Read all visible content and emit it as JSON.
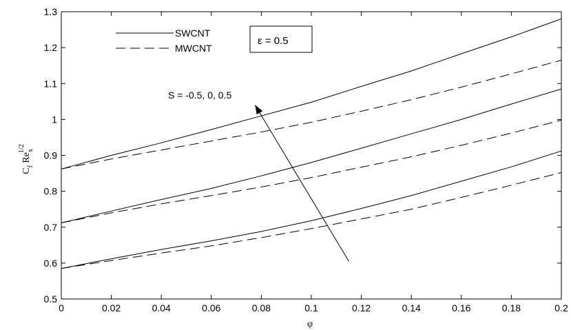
{
  "chart_data": {
    "type": "line",
    "xlabel": "φ",
    "ylabel_main": "C",
    "ylabel_sub1": "f",
    "ylabel_mid": " Re",
    "ylabel_sub2": "x",
    "ylabel_sup": "1/2",
    "xlim": [
      0,
      0.2
    ],
    "ylim": [
      0.5,
      1.3
    ],
    "x_ticks": [
      0,
      0.02,
      0.04,
      0.06,
      0.08,
      0.1,
      0.12,
      0.14,
      0.16,
      0.18,
      0.2
    ],
    "x_tick_labels": [
      "0",
      "0.02",
      "0.04",
      "0.06",
      "0.08",
      "0.1",
      "0.12",
      "0.14",
      "0.16",
      "0.18",
      "0.2"
    ],
    "y_ticks": [
      0.5,
      0.6,
      0.7,
      0.8,
      0.9,
      1.0,
      1.1,
      1.2,
      1.3
    ],
    "y_tick_labels": [
      "0.5",
      "0.6",
      "0.7",
      "0.8",
      "0.9",
      "1",
      "1.1",
      "1.2",
      "1.3"
    ],
    "grid": false,
    "legend": {
      "placement": "top-left",
      "entries": [
        {
          "label": "SWCNT",
          "style": "solid"
        },
        {
          "label": "MWCNT",
          "style": "dashed"
        }
      ]
    },
    "info_box": "ε = 0.5",
    "annotation": {
      "text": "S = -0.5, 0, 0.5",
      "arrow_from": [
        0.115,
        0.605
      ],
      "arrow_to": [
        0.0775,
        1.04
      ]
    },
    "series": [
      {
        "group": "S = -0.5",
        "style": "solid",
        "x": [
          0,
          0.02,
          0.04,
          0.06,
          0.08,
          0.1,
          0.12,
          0.14,
          0.16,
          0.18,
          0.2
        ],
        "y": [
          0.585,
          0.612,
          0.638,
          0.662,
          0.688,
          0.718,
          0.752,
          0.788,
          0.828,
          0.868,
          0.912
        ]
      },
      {
        "group": "S = -0.5",
        "style": "dashed",
        "x": [
          0,
          0.02,
          0.04,
          0.06,
          0.08,
          0.1,
          0.12,
          0.14,
          0.16,
          0.18,
          0.2
        ],
        "y": [
          0.585,
          0.607,
          0.628,
          0.648,
          0.671,
          0.696,
          0.723,
          0.75,
          0.783,
          0.817,
          0.852
        ]
      },
      {
        "group": "S = 0",
        "style": "solid",
        "x": [
          0,
          0.02,
          0.04,
          0.06,
          0.08,
          0.1,
          0.12,
          0.14,
          0.16,
          0.18,
          0.2
        ],
        "y": [
          0.712,
          0.745,
          0.777,
          0.808,
          0.843,
          0.88,
          0.92,
          0.96,
          1.0,
          1.043,
          1.085
        ]
      },
      {
        "group": "S = 0",
        "style": "dashed",
        "x": [
          0,
          0.02,
          0.04,
          0.06,
          0.08,
          0.1,
          0.12,
          0.14,
          0.16,
          0.18,
          0.2
        ],
        "y": [
          0.712,
          0.74,
          0.765,
          0.788,
          0.812,
          0.838,
          0.867,
          0.896,
          0.928,
          0.962,
          0.998
        ]
      },
      {
        "group": "S = 0.5",
        "style": "solid",
        "x": [
          0,
          0.02,
          0.04,
          0.06,
          0.08,
          0.1,
          0.12,
          0.14,
          0.16,
          0.18,
          0.2
        ],
        "y": [
          0.862,
          0.9,
          0.935,
          0.972,
          1.01,
          1.048,
          1.092,
          1.135,
          1.183,
          1.23,
          1.28
        ]
      },
      {
        "group": "S = 0.5",
        "style": "dashed",
        "x": [
          0,
          0.02,
          0.04,
          0.06,
          0.08,
          0.1,
          0.12,
          0.14,
          0.16,
          0.18,
          0.2
        ],
        "y": [
          0.862,
          0.89,
          0.915,
          0.94,
          0.965,
          0.992,
          1.023,
          1.055,
          1.09,
          1.127,
          1.165
        ]
      }
    ]
  }
}
